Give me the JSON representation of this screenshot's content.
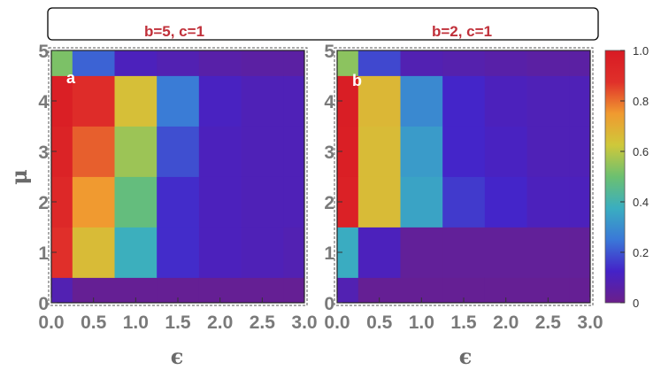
{
  "chart_data": {
    "type": "heatmap",
    "xlabel": "ϵ",
    "ylabel": "μ",
    "x_ticks": [
      "0.0",
      "0.5",
      "1.0",
      "1.5",
      "2.0",
      "2.5",
      "3.0"
    ],
    "y_ticks": [
      "0",
      "1",
      "2",
      "3",
      "4",
      "5"
    ],
    "xlim": [
      0,
      3
    ],
    "ylim": [
      0,
      5
    ],
    "x_bin_edges": [
      0,
      0.25,
      0.75,
      1.25,
      1.75,
      2.25,
      2.75,
      3.0
    ],
    "y_bin_edges": [
      0,
      0.5,
      1.5,
      2.5,
      3.5,
      4.5,
      5.0
    ],
    "colorbar": {
      "min": 0,
      "max": 1,
      "tick_labels": [
        "0",
        "0.2",
        "0.4",
        "0.6",
        "0.8",
        "1.0"
      ],
      "tick_values": [
        0,
        0.2,
        0.4,
        0.6,
        0.8,
        1.0
      ],
      "stops": [
        "#6b1f8a",
        "#4422c8",
        "#3a78d8",
        "#3aaec0",
        "#6cc070",
        "#cfc83a",
        "#f09a30",
        "#e0302a",
        "#d81a24"
      ]
    },
    "panels": [
      {
        "title": "b=5, c=1",
        "letter": "a",
        "values": [
          [
            0.08,
            0.02,
            0.02,
            0.02,
            0.02,
            0.02,
            0.02
          ],
          [
            0.88,
            0.66,
            0.38,
            0.14,
            0.1,
            0.09,
            0.08
          ],
          [
            0.92,
            0.75,
            0.48,
            0.14,
            0.1,
            0.09,
            0.09
          ],
          [
            0.95,
            0.82,
            0.56,
            0.19,
            0.1,
            0.09,
            0.09
          ],
          [
            0.97,
            0.9,
            0.65,
            0.26,
            0.11,
            0.09,
            0.09
          ],
          [
            0.52,
            0.22,
            0.1,
            0.08,
            0.06,
            0.05,
            0.05
          ]
        ]
      },
      {
        "title": "b=2, c=1",
        "letter": "b",
        "values": [
          [
            0.08,
            0.02,
            0.02,
            0.02,
            0.02,
            0.02,
            0.02
          ],
          [
            0.37,
            0.1,
            0.03,
            0.03,
            0.03,
            0.03,
            0.03
          ],
          [
            0.96,
            0.66,
            0.35,
            0.16,
            0.13,
            0.1,
            0.1
          ],
          [
            0.97,
            0.66,
            0.33,
            0.13,
            0.11,
            0.09,
            0.09
          ],
          [
            0.98,
            0.67,
            0.29,
            0.13,
            0.1,
            0.09,
            0.09
          ],
          [
            0.54,
            0.18,
            0.08,
            0.07,
            0.06,
            0.05,
            0.05
          ]
        ]
      }
    ]
  }
}
